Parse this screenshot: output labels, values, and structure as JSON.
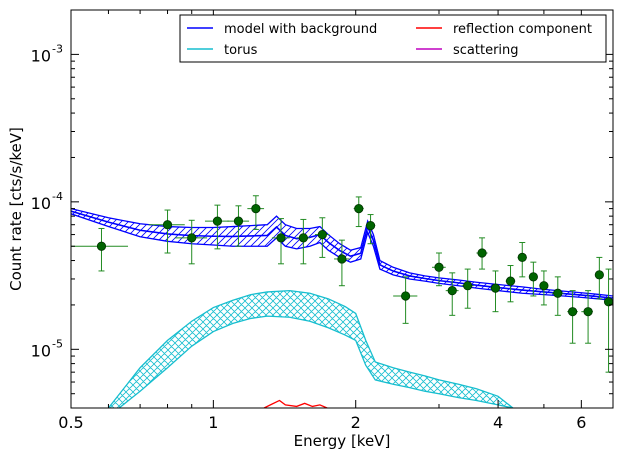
{
  "chart_data": {
    "type": "line",
    "xlabel": "Energy [keV]",
    "ylabel": "Count rate [cts/s/keV]",
    "xscale": "log",
    "yscale": "log",
    "xlim": [
      0.5,
      7.0
    ],
    "ylim": [
      4e-06,
      0.002
    ],
    "x_ticks": [
      {
        "value": 0.5,
        "label": "0.5"
      },
      {
        "value": 1,
        "label": "1"
      },
      {
        "value": 2,
        "label": "2"
      },
      {
        "value": 4,
        "label": "4"
      },
      {
        "value": 6,
        "label": "6"
      }
    ],
    "y_ticks": [
      {
        "value": 1e-05,
        "base": "10",
        "exp": "-5"
      },
      {
        "value": 0.0001,
        "base": "10",
        "exp": "-4"
      },
      {
        "value": 0.001,
        "base": "10",
        "exp": "-3"
      }
    ],
    "legend": {
      "placement": "top-right",
      "columns": 2,
      "entries": [
        {
          "label": "model with background",
          "color": "#0000ff"
        },
        {
          "label": "torus",
          "color": "#17becf"
        },
        {
          "label": "reflection component",
          "color": "#ff0000"
        },
        {
          "label": "scattering",
          "color": "#bf00bf"
        }
      ]
    },
    "series": [
      {
        "name": "model with background",
        "color": "#0000ff",
        "band": true,
        "x": [
          0.5,
          0.6,
          0.7,
          0.8,
          0.9,
          1.0,
          1.1,
          1.2,
          1.3,
          1.36,
          1.42,
          1.5,
          1.6,
          1.68,
          1.75,
          1.85,
          1.95,
          2.05,
          2.12,
          2.18,
          2.25,
          2.4,
          2.6,
          2.8,
          3.0,
          3.3,
          3.6,
          4.0,
          4.5,
          5.0,
          5.5,
          6.0,
          6.5,
          7.0
        ],
        "lower": [
          8.3e-05,
          6.8e-05,
          5.8e-05,
          5.4e-05,
          5.2e-05,
          5.1e-05,
          5e-05,
          5e-05,
          5e-05,
          5.7e-05,
          5e-05,
          4.8e-05,
          5e-05,
          5.3e-05,
          4.7e-05,
          4.2e-05,
          3.9e-05,
          4.1e-05,
          6.2e-05,
          5e-05,
          3.5e-05,
          3.2e-05,
          3e-05,
          2.9e-05,
          2.8e-05,
          2.7e-05,
          2.6e-05,
          2.5e-05,
          2.4e-05,
          2.35e-05,
          2.3e-05,
          2.25e-05,
          2.2e-05,
          2.15e-05
        ],
        "upper": [
          9e-05,
          7.8e-05,
          7.1e-05,
          6.8e-05,
          6.7e-05,
          6.7e-05,
          6.8e-05,
          6.9e-05,
          7e-05,
          8e-05,
          7e-05,
          6.6e-05,
          6.6e-05,
          6.8e-05,
          6e-05,
          5.2e-05,
          4.7e-05,
          4.9e-05,
          7.4e-05,
          6e-05,
          4e-05,
          3.6e-05,
          3.3e-05,
          3.15e-05,
          3.05e-05,
          2.95e-05,
          2.85e-05,
          2.75e-05,
          2.65e-05,
          2.55e-05,
          2.48e-05,
          2.42e-05,
          2.36e-05,
          2.3e-05
        ]
      },
      {
        "name": "torus",
        "color": "#17becf",
        "band": true,
        "x": [
          0.6,
          0.7,
          0.8,
          0.9,
          1.0,
          1.1,
          1.2,
          1.3,
          1.45,
          1.6,
          1.75,
          1.9,
          2.0,
          2.1,
          2.2,
          2.4,
          2.6,
          2.8,
          3.0,
          3.3,
          3.6,
          4.0,
          4.3
        ],
        "lower": [
          3.5e-06,
          5.2e-06,
          7.5e-06,
          1.05e-05,
          1.32e-05,
          1.5e-05,
          1.62e-05,
          1.68e-05,
          1.65e-05,
          1.55e-05,
          1.4e-05,
          1.25e-05,
          1.15e-05,
          7.8e-06,
          6.2e-06,
          5.8e-06,
          5.5e-06,
          5.2e-06,
          5e-06,
          4.7e-06,
          4.5e-06,
          4.2e-06,
          4e-06
        ],
        "upper": [
          4e-06,
          7.5e-06,
          1.15e-05,
          1.55e-05,
          1.92e-05,
          2.15e-05,
          2.35e-05,
          2.45e-05,
          2.5e-05,
          2.4e-05,
          2.2e-05,
          1.95e-05,
          1.75e-05,
          1.15e-05,
          8.2e-06,
          7.5e-06,
          7e-06,
          6.6e-06,
          6.2e-06,
          5.8e-06,
          5.4e-06,
          4.8e-06,
          4e-06
        ]
      },
      {
        "name": "reflection component",
        "color": "#ff0000",
        "x": [
          1.28,
          1.32,
          1.38,
          1.42,
          1.5,
          1.56,
          1.62,
          1.68,
          1.74
        ],
        "y": [
          4e-06,
          4.2e-06,
          4.5e-06,
          4.2e-06,
          4.1e-06,
          4.3e-06,
          4.1e-06,
          4.2e-06,
          4e-06
        ]
      },
      {
        "name": "data",
        "type": "scatter",
        "color": "#006400",
        "points": [
          {
            "x": 0.58,
            "y": 5e-05,
            "xlo": 0.5,
            "xhi": 0.66,
            "ylo": 3.4e-05,
            "yhi": 6.6e-05
          },
          {
            "x": 0.8,
            "y": 7e-05,
            "xlo": 0.73,
            "xhi": 0.87,
            "ylo": 4.5e-05,
            "yhi": 8.8e-05
          },
          {
            "x": 0.9,
            "y": 5.7e-05,
            "xlo": 0.83,
            "xhi": 0.97,
            "ylo": 3.8e-05,
            "yhi": 7.5e-05
          },
          {
            "x": 1.02,
            "y": 7.4e-05,
            "xlo": 0.96,
            "xhi": 1.08,
            "ylo": 4.8e-05,
            "yhi": 9.5e-05
          },
          {
            "x": 1.13,
            "y": 7.4e-05,
            "xlo": 1.07,
            "xhi": 1.19,
            "ylo": 5e-05,
            "yhi": 9.4e-05
          },
          {
            "x": 1.23,
            "y": 9e-05,
            "xlo": 1.18,
            "xhi": 1.28,
            "ylo": 6.5e-05,
            "yhi": 0.00011
          },
          {
            "x": 1.39,
            "y": 5.7e-05,
            "xlo": 1.33,
            "xhi": 1.45,
            "ylo": 3.8e-05,
            "yhi": 7.7e-05
          },
          {
            "x": 1.55,
            "y": 5.7e-05,
            "xlo": 1.5,
            "xhi": 1.6,
            "ylo": 3.8e-05,
            "yhi": 7.6e-05
          },
          {
            "x": 1.7,
            "y": 6e-05,
            "xlo": 1.64,
            "xhi": 1.76,
            "ylo": 4.2e-05,
            "yhi": 7.8e-05
          },
          {
            "x": 1.87,
            "y": 4.1e-05,
            "xlo": 1.8,
            "xhi": 1.94,
            "ylo": 2.7e-05,
            "yhi": 5.5e-05
          },
          {
            "x": 2.03,
            "y": 9e-05,
            "xlo": 1.98,
            "xhi": 2.08,
            "ylo": 6.8e-05,
            "yhi": 0.000108
          },
          {
            "x": 2.15,
            "y": 6.9e-05,
            "xlo": 2.1,
            "xhi": 2.2,
            "ylo": 5.2e-05,
            "yhi": 8.2e-05
          },
          {
            "x": 2.55,
            "y": 2.3e-05,
            "xlo": 2.4,
            "xhi": 2.7,
            "ylo": 1.5e-05,
            "yhi": 3.1e-05
          },
          {
            "x": 3.0,
            "y": 3.6e-05,
            "xlo": 2.9,
            "xhi": 3.1,
            "ylo": 2.7e-05,
            "yhi": 4.5e-05
          },
          {
            "x": 3.2,
            "y": 2.5e-05,
            "xlo": 3.1,
            "xhi": 3.3,
            "ylo": 1.7e-05,
            "yhi": 3.3e-05
          },
          {
            "x": 3.45,
            "y": 2.7e-05,
            "xlo": 3.35,
            "xhi": 3.55,
            "ylo": 1.9e-05,
            "yhi": 3.5e-05
          },
          {
            "x": 3.7,
            "y": 4.5e-05,
            "xlo": 3.6,
            "xhi": 3.8,
            "ylo": 3.5e-05,
            "yhi": 5.7e-05
          },
          {
            "x": 3.95,
            "y": 2.6e-05,
            "xlo": 3.85,
            "xhi": 4.05,
            "ylo": 1.8e-05,
            "yhi": 3.4e-05
          },
          {
            "x": 4.25,
            "y": 2.9e-05,
            "xlo": 4.15,
            "xhi": 4.35,
            "ylo": 2.1e-05,
            "yhi": 3.7e-05
          },
          {
            "x": 4.5,
            "y": 4.2e-05,
            "xlo": 4.4,
            "xhi": 4.6,
            "ylo": 3.1e-05,
            "yhi": 5.3e-05
          },
          {
            "x": 4.75,
            "y": 3.1e-05,
            "xlo": 4.65,
            "xhi": 4.85,
            "ylo": 2.3e-05,
            "yhi": 3.9e-05
          },
          {
            "x": 5.0,
            "y": 2.7e-05,
            "xlo": 4.9,
            "xhi": 5.1,
            "ylo": 2e-05,
            "yhi": 3.4e-05
          },
          {
            "x": 5.35,
            "y": 2.4e-05,
            "xlo": 5.2,
            "xhi": 5.5,
            "ylo": 1.7e-05,
            "yhi": 3.1e-05
          },
          {
            "x": 5.75,
            "y": 1.8e-05,
            "xlo": 5.6,
            "xhi": 5.9,
            "ylo": 1.1e-05,
            "yhi": 2.5e-05
          },
          {
            "x": 6.2,
            "y": 1.8e-05,
            "xlo": 6.0,
            "xhi": 6.35,
            "ylo": 1.1e-05,
            "yhi": 2.5e-05
          },
          {
            "x": 6.55,
            "y": 3.2e-05,
            "xlo": 6.45,
            "xhi": 6.65,
            "ylo": 2.2e-05,
            "yhi": 4.2e-05
          },
          {
            "x": 6.85,
            "y": 2.1e-05,
            "xlo": 6.7,
            "xhi": 7.0,
            "ylo": 7e-06,
            "yhi": 3.5e-05
          }
        ]
      }
    ]
  }
}
